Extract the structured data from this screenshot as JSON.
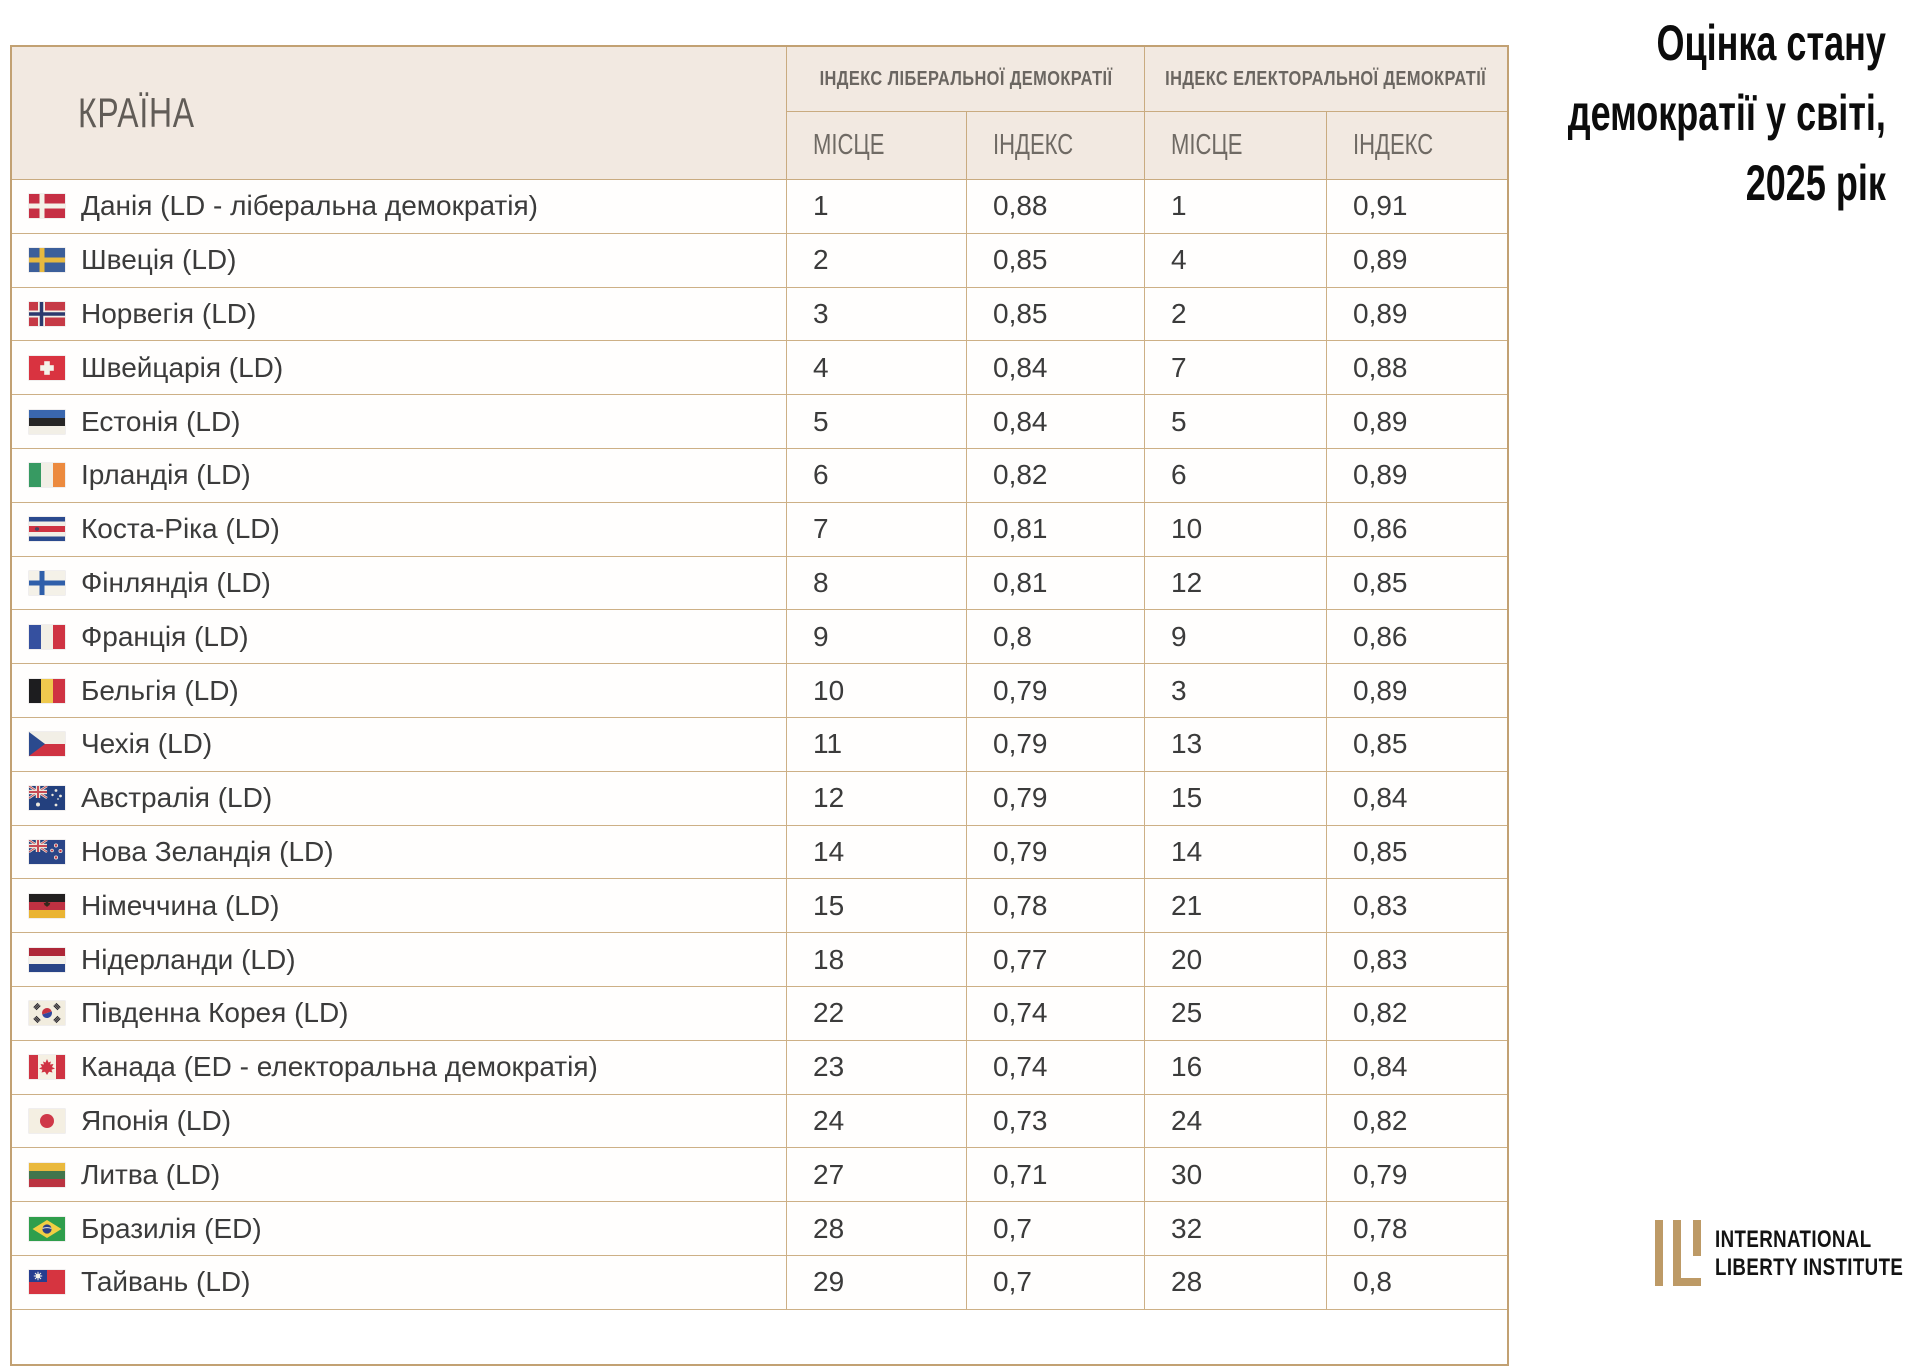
{
  "title": {
    "lines": [
      "Оцінка стану",
      "демократії у світі,",
      "2025 рік"
    ]
  },
  "table": {
    "country_header": "КРАЇНА",
    "groups": [
      {
        "label": "ІНДЕКС ЛІБЕРАЛЬНОЇ ДЕМОКРАТІЇ"
      },
      {
        "label": "ІНДЕКС ЕЛЕКТОРАЛЬНОЇ ДЕМОКРАТІЇ"
      }
    ],
    "subheaders": {
      "place": "МІСЦЕ",
      "index": "ІНДЕКС"
    }
  },
  "logo": {
    "mark": "ili-monogram",
    "lines": [
      "INTERNATIONAL",
      "LIBERTY INSTITUTE"
    ]
  },
  "colors": {
    "outer_border": "#c2a173",
    "inner_border": "#cdb086",
    "header_bg": "#f2e9e1",
    "header_text": "#6b6661",
    "body_text": "#3b3b3b",
    "title_text": "#0c0c0c",
    "logo_gold": "#bd9a66"
  },
  "chart_data": {
    "type": "table",
    "title": "Оцінка стану демократії у світі, 2025 рік",
    "columns": [
      "КРАЇНА",
      "ІНДЕКС ЛІБЕРАЛЬНОЇ ДЕМОКРАТІЇ — МІСЦЕ",
      "ІНДЕКС ЛІБЕРАЛЬНОЇ ДЕМОКРАТІЇ — ІНДЕКС",
      "ІНДЕКС ЕЛЕКТОРАЛЬНОЇ ДЕМОКРАТІЇ — МІСЦЕ",
      "ІНДЕКС ЕЛЕКТОРАЛЬНОЇ ДЕМОКРАТІЇ — ІНДЕКС"
    ],
    "decimal_separator": ",",
    "rows": [
      {
        "flag": "dk",
        "country": "Данія (LD - ліберальна демократія)",
        "ld_place": 1,
        "ld_index": 0.88,
        "ed_place": 1,
        "ed_index": 0.91
      },
      {
        "flag": "se",
        "country": "Швеція (LD)",
        "ld_place": 2,
        "ld_index": 0.85,
        "ed_place": 4,
        "ed_index": 0.89
      },
      {
        "flag": "no",
        "country": "Норвегія (LD)",
        "ld_place": 3,
        "ld_index": 0.85,
        "ed_place": 2,
        "ed_index": 0.89
      },
      {
        "flag": "ch",
        "country": "Швейцарія (LD)",
        "ld_place": 4,
        "ld_index": 0.84,
        "ed_place": 7,
        "ed_index": 0.88
      },
      {
        "flag": "ee",
        "country": "Естонія (LD)",
        "ld_place": 5,
        "ld_index": 0.84,
        "ed_place": 5,
        "ed_index": 0.89
      },
      {
        "flag": "ie",
        "country": "Ірландія (LD)",
        "ld_place": 6,
        "ld_index": 0.82,
        "ed_place": 6,
        "ed_index": 0.89
      },
      {
        "flag": "cr",
        "country": "Коста-Ріка (LD)",
        "ld_place": 7,
        "ld_index": 0.81,
        "ed_place": 10,
        "ed_index": 0.86
      },
      {
        "flag": "fi",
        "country": "Фінляндія (LD)",
        "ld_place": 8,
        "ld_index": 0.81,
        "ed_place": 12,
        "ed_index": 0.85
      },
      {
        "flag": "fr",
        "country": "Франція (LD)",
        "ld_place": 9,
        "ld_index": 0.8,
        "ed_place": 9,
        "ed_index": 0.86
      },
      {
        "flag": "be",
        "country": "Бельгія (LD)",
        "ld_place": 10,
        "ld_index": 0.79,
        "ed_place": 3,
        "ed_index": 0.89
      },
      {
        "flag": "cz",
        "country": "Чехія (LD)",
        "ld_place": 11,
        "ld_index": 0.79,
        "ed_place": 13,
        "ed_index": 0.85
      },
      {
        "flag": "au",
        "country": "Австралія (LD)",
        "ld_place": 12,
        "ld_index": 0.79,
        "ed_place": 15,
        "ed_index": 0.84
      },
      {
        "flag": "nz",
        "country": "Нова Зеландія (LD)",
        "ld_place": 14,
        "ld_index": 0.79,
        "ed_place": 14,
        "ed_index": 0.85
      },
      {
        "flag": "de",
        "country": "Німеччина (LD)",
        "ld_place": 15,
        "ld_index": 0.78,
        "ed_place": 21,
        "ed_index": 0.83
      },
      {
        "flag": "nl",
        "country": "Нідерланди (LD)",
        "ld_place": 18,
        "ld_index": 0.77,
        "ed_place": 20,
        "ed_index": 0.83
      },
      {
        "flag": "kr",
        "country": "Південна Корея (LD)",
        "ld_place": 22,
        "ld_index": 0.74,
        "ed_place": 25,
        "ed_index": 0.82
      },
      {
        "flag": "ca",
        "country": "Канада (ED - електоральна демократія)",
        "ld_place": 23,
        "ld_index": 0.74,
        "ed_place": 16,
        "ed_index": 0.84
      },
      {
        "flag": "jp",
        "country": "Японія (LD)",
        "ld_place": 24,
        "ld_index": 0.73,
        "ed_place": 24,
        "ed_index": 0.82
      },
      {
        "flag": "lt",
        "country": "Литва (LD)",
        "ld_place": 27,
        "ld_index": 0.71,
        "ed_place": 30,
        "ed_index": 0.79
      },
      {
        "flag": "br",
        "country": "Бразилія (ED)",
        "ld_place": 28,
        "ld_index": 0.7,
        "ed_place": 32,
        "ed_index": 0.78
      },
      {
        "flag": "tw",
        "country": "Тайвань (LD)",
        "ld_place": 29,
        "ld_index": 0.7,
        "ed_place": 28,
        "ed_index": 0.8
      }
    ]
  }
}
